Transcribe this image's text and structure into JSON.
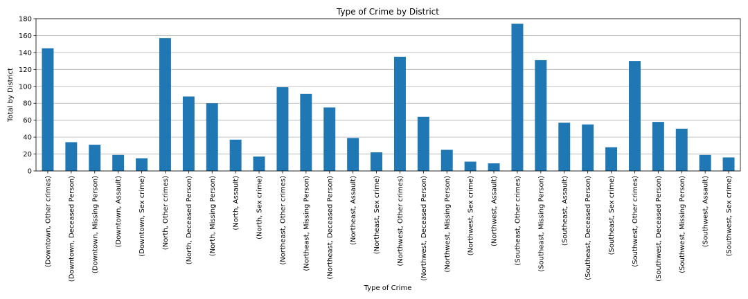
{
  "chart_data": {
    "type": "bar",
    "title": "Type of Crime by District",
    "xlabel": "Type of Crime",
    "ylabel": "Total by District",
    "ylim": [
      0,
      180
    ],
    "yticks": [
      0,
      20,
      40,
      60,
      80,
      100,
      120,
      140,
      160,
      180
    ],
    "grid": "y",
    "bar_color": "#1f77b4",
    "categories": [
      "(Downtown, Other crimes)",
      "(Downtown, Deceased Person)",
      "(Downtown, Missing Person)",
      "(Downtown, Assault)",
      "(Downtown, Sex crime)",
      "(North, Other crimes)",
      "(North, Deceased Person)",
      "(North, Missing Person)",
      "(North, Assault)",
      "(North, Sex crime)",
      "(Northeast, Other crimes)",
      "(Northeast, Missing Person)",
      "(Northeast, Deceased Person)",
      "(Northeast, Assault)",
      "(Northeast, Sex crime)",
      "(Northwest, Other crimes)",
      "(Northwest, Deceased Person)",
      "(Northwest, Missing Person)",
      "(Northwest, Sex crime)",
      "(Northwest, Assault)",
      "(Southeast, Other crimes)",
      "(Southeast, Missing Person)",
      "(Southeast, Assault)",
      "(Southeast, Deceased Person)",
      "(Southeast, Sex crime)",
      "(Southwest, Other crimes)",
      "(Southwest, Deceased Person)",
      "(Southwest, Missing Person)",
      "(Southwest, Assault)",
      "(Southwest, Sex crime)"
    ],
    "values": [
      145,
      34,
      31,
      19,
      15,
      157,
      88,
      80,
      37,
      17,
      99,
      91,
      75,
      39,
      22,
      135,
      64,
      25,
      11,
      9,
      174,
      131,
      57,
      55,
      28,
      130,
      58,
      50,
      19,
      16
    ]
  }
}
